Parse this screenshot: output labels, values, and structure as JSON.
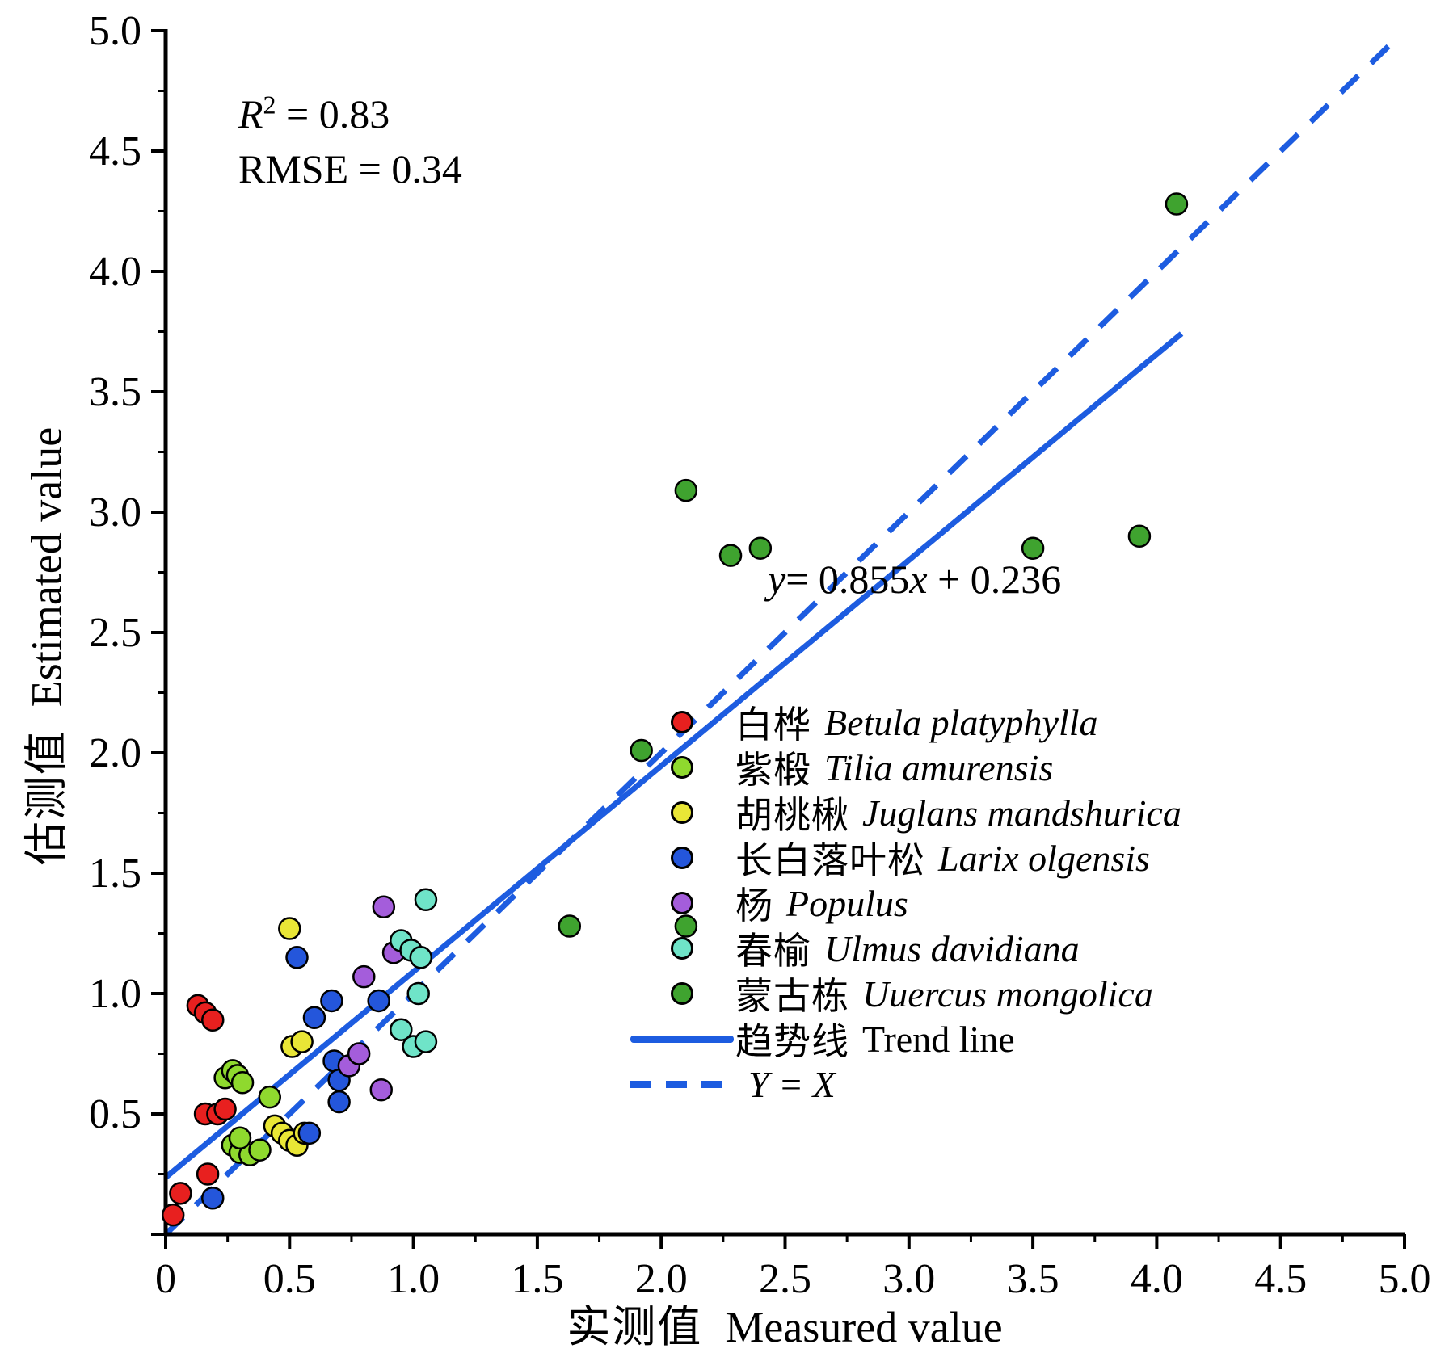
{
  "annotations": {
    "r2": {
      "symbol": "R",
      "sup": "2",
      "value": "= 0.83"
    },
    "rmse": "RMSE = 0.34",
    "equation": {
      "y": "y",
      "part1": "= 0.855",
      "x": "x",
      "part2": " + 0.236"
    }
  },
  "axes": {
    "x_label_cn": "实测值",
    "x_label_en": "Measured value",
    "y_label_cn": "估测值",
    "y_label_en": "Estimated value"
  },
  "chart_data": {
    "type": "scatter",
    "title": "",
    "xlabel": "实测值 Measured value",
    "ylabel": "估测值 Estimated value",
    "xlim": [
      0,
      5
    ],
    "ylim": [
      0,
      5
    ],
    "grid": false,
    "legend_position": "inside-right",
    "tick_values": [
      0,
      0.5,
      1.0,
      1.5,
      2.0,
      2.5,
      3.0,
      3.5,
      4.0,
      4.5,
      5.0
    ],
    "tick_labels": [
      "0",
      "0.5",
      "1.0",
      "1.5",
      "2.0",
      "2.5",
      "3.0",
      "3.5",
      "4.0",
      "4.5",
      "5.0"
    ],
    "minor_tick_step": 0.25,
    "r_squared": 0.83,
    "rmse": 0.34,
    "regression": {
      "slope": 0.855,
      "intercept": 0.236
    },
    "line_color": "#1d5ce0",
    "series": [
      {
        "name_cn": "白桦",
        "name_en": "Betula platyphylla",
        "color": "#e8201f",
        "points": [
          [
            0.03,
            0.08
          ],
          [
            0.06,
            0.17
          ],
          [
            0.17,
            0.25
          ],
          [
            0.13,
            0.95
          ],
          [
            0.16,
            0.92
          ],
          [
            0.19,
            0.89
          ],
          [
            0.16,
            0.5
          ],
          [
            0.21,
            0.5
          ],
          [
            0.24,
            0.52
          ]
        ]
      },
      {
        "name_cn": "紫椴",
        "name_en": "Tilia amurensis",
        "color": "#8fd92e",
        "points": [
          [
            0.24,
            0.65
          ],
          [
            0.27,
            0.68
          ],
          [
            0.29,
            0.66
          ],
          [
            0.31,
            0.63
          ],
          [
            0.27,
            0.37
          ],
          [
            0.3,
            0.34
          ],
          [
            0.34,
            0.33
          ],
          [
            0.38,
            0.35
          ],
          [
            0.42,
            0.57
          ],
          [
            0.3,
            0.4
          ]
        ]
      },
      {
        "name_cn": "胡桃楸",
        "name_en": "Juglans mandshurica",
        "color": "#e9e636",
        "points": [
          [
            0.5,
            1.27
          ],
          [
            0.51,
            0.78
          ],
          [
            0.55,
            0.8
          ],
          [
            0.44,
            0.45
          ],
          [
            0.47,
            0.42
          ],
          [
            0.5,
            0.39
          ],
          [
            0.53,
            0.37
          ],
          [
            0.56,
            0.42
          ]
        ]
      },
      {
        "name_cn": "长白落叶松",
        "name_en": "Larix olgensis",
        "color": "#2456db",
        "points": [
          [
            0.53,
            1.15
          ],
          [
            0.6,
            0.9
          ],
          [
            0.67,
            0.97
          ],
          [
            0.68,
            0.72
          ],
          [
            0.7,
            0.64
          ],
          [
            0.7,
            0.55
          ],
          [
            0.58,
            0.42
          ],
          [
            0.19,
            0.15
          ],
          [
            0.86,
            0.97
          ]
        ]
      },
      {
        "name_cn": "杨",
        "name_en": "Populus",
        "color": "#a45ddb",
        "points": [
          [
            0.88,
            1.36
          ],
          [
            0.92,
            1.17
          ],
          [
            0.8,
            1.07
          ],
          [
            0.74,
            0.7
          ],
          [
            0.78,
            0.75
          ],
          [
            0.87,
            0.6
          ]
        ]
      },
      {
        "name_cn": "春榆",
        "name_en": "Ulmus davidiana",
        "color": "#6fe4c8",
        "points": [
          [
            1.05,
            1.39
          ],
          [
            0.95,
            1.22
          ],
          [
            0.99,
            1.18
          ],
          [
            1.03,
            1.15
          ],
          [
            1.02,
            1.0
          ],
          [
            0.95,
            0.85
          ],
          [
            1.0,
            0.78
          ],
          [
            1.05,
            0.8
          ]
        ]
      },
      {
        "name_cn": "蒙古栋",
        "name_en": "Uuercus mongolica",
        "color": "#3fa32f",
        "points": [
          [
            2.1,
            3.09
          ],
          [
            2.28,
            2.82
          ],
          [
            2.4,
            2.85
          ],
          [
            4.08,
            4.28
          ],
          [
            3.5,
            2.85
          ],
          [
            3.93,
            2.9
          ],
          [
            1.92,
            2.01
          ],
          [
            1.63,
            1.28
          ],
          [
            2.1,
            1.28
          ]
        ]
      }
    ],
    "trend_line": {
      "label_cn": "趋势线",
      "label_en": "Trend line",
      "slope": 0.855,
      "intercept": 0.236,
      "x_range": [
        0,
        4.1
      ]
    },
    "identity_line": {
      "label": "Y = X",
      "x_range": [
        0,
        4.97
      ]
    }
  }
}
